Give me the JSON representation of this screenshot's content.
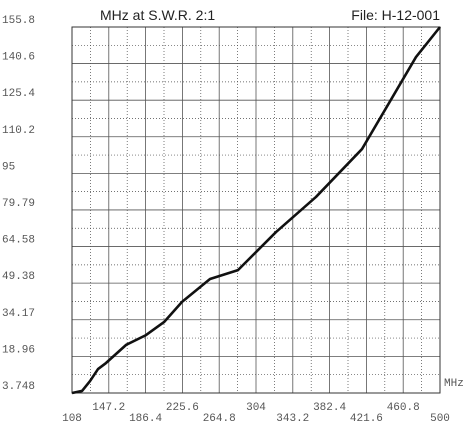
{
  "chart_data": {
    "type": "line",
    "title": "MHz at S.W.R.  2:1",
    "subtitle": "File:  H-12-001",
    "x_label": "MHz",
    "x": [
      108,
      118.7,
      127.2,
      135.7,
      144.2,
      165.5,
      186.8,
      206,
      225.2,
      255,
      284.8,
      325.3,
      367.9,
      416.9,
      474.4,
      500
    ],
    "series": [
      {
        "name": "SWR 2:1",
        "color": "#111111",
        "values": [
          3.748,
          4.6,
          8.7,
          13.7,
          16.2,
          23.7,
          27.8,
          33.2,
          41.6,
          51.1,
          54.8,
          70.6,
          85.2,
          105.1,
          143.3,
          155.8
        ]
      }
    ],
    "xlim": [
      108,
      500
    ],
    "xticks": [
      108,
      147.2,
      186.4,
      225.6,
      264.8,
      304,
      343.2,
      382.4,
      421.6,
      460.8,
      500
    ],
    "ylim": [
      3.748,
      155.8
    ],
    "yticks": [
      3.748,
      18.96,
      34.17,
      49.38,
      64.58,
      79.79,
      95,
      110.2,
      125.4,
      140.6,
      155.8
    ],
    "grid": true
  }
}
